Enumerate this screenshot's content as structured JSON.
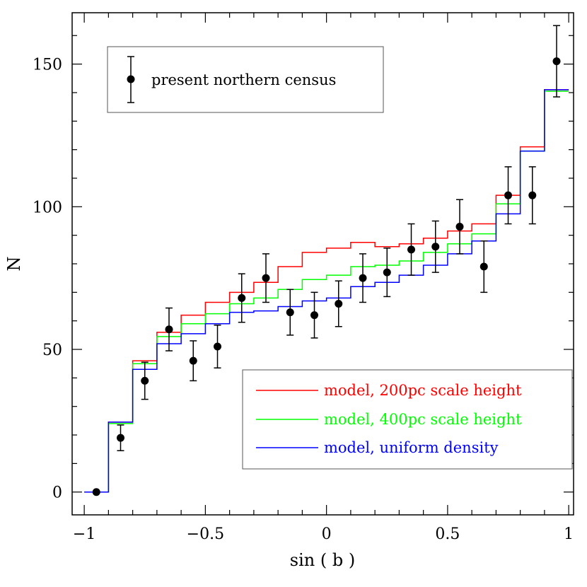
{
  "chart_data": {
    "type": "line",
    "title": "",
    "xlabel": "sin ( b )",
    "ylabel": "N",
    "xlim": [
      -1.05,
      1.02
    ],
    "ylim": [
      -8,
      168
    ],
    "x_ticks": [
      {
        "value": -1,
        "label": "−1"
      },
      {
        "value": -0.5,
        "label": "−0.5"
      },
      {
        "value": 0,
        "label": "0"
      },
      {
        "value": 0.5,
        "label": "0.5"
      },
      {
        "value": 1,
        "label": "1"
      }
    ],
    "y_ticks": [
      {
        "value": 0,
        "label": "0"
      },
      {
        "value": 50,
        "label": "50"
      },
      {
        "value": 100,
        "label": "100"
      },
      {
        "value": 150,
        "label": "150"
      }
    ],
    "grid": false,
    "bin_edges": [
      -1.0,
      -0.9,
      -0.8,
      -0.7,
      -0.6,
      -0.5,
      -0.4,
      -0.3,
      -0.2,
      -0.1,
      0.0,
      0.1,
      0.2,
      0.3,
      0.4,
      0.5,
      0.6,
      0.7,
      0.8,
      0.9,
      1.0
    ],
    "series": [
      {
        "name": "model, 200pc scale height",
        "color": "#ff0000",
        "style": "step",
        "values": [
          0,
          24.5,
          46,
          56,
          62,
          66.5,
          70,
          73.5,
          79,
          84,
          85.5,
          87.5,
          86,
          87,
          89,
          91.5,
          94,
          104,
          121,
          141
        ]
      },
      {
        "name": "model, 400pc scale height",
        "color": "#00ff00",
        "style": "step",
        "values": [
          0,
          24,
          45,
          54.5,
          59,
          62.5,
          66,
          68,
          71,
          74.5,
          76,
          79,
          79.5,
          81,
          84,
          87,
          90.5,
          101,
          119.5,
          140.5
        ]
      },
      {
        "name": "model, uniform density",
        "color": "#0000ff",
        "style": "step",
        "values": [
          0,
          24.5,
          43,
          52,
          55.5,
          59,
          63,
          63.5,
          65,
          67,
          68,
          72,
          73.5,
          76,
          79.5,
          83.5,
          88,
          97.5,
          119.5,
          141
        ]
      }
    ],
    "points": {
      "name": "present northern census",
      "color": "#000000",
      "x": [
        -0.95,
        -0.85,
        -0.75,
        -0.65,
        -0.55,
        -0.45,
        -0.35,
        -0.25,
        -0.15,
        -0.05,
        0.05,
        0.15,
        0.25,
        0.35,
        0.45,
        0.55,
        0.65,
        0.75,
        0.85,
        0.95
      ],
      "y": [
        0,
        19,
        39,
        57,
        46,
        51,
        68,
        75,
        63,
        62,
        66,
        75,
        77,
        85,
        86,
        93,
        79,
        104,
        104,
        151
      ],
      "err": [
        0,
        4.5,
        6.5,
        7.5,
        7,
        7.5,
        8.5,
        8.5,
        8,
        8,
        8,
        8.5,
        8.5,
        9,
        9,
        9.5,
        9,
        10,
        10,
        12.5
      ]
    },
    "legends": [
      {
        "placement": "top-left",
        "entries": [
          "present northern census"
        ]
      },
      {
        "placement": "bottom-right",
        "entries": [
          "model, 200pc scale height",
          "model, 400pc scale height",
          "model, uniform density"
        ]
      }
    ]
  }
}
